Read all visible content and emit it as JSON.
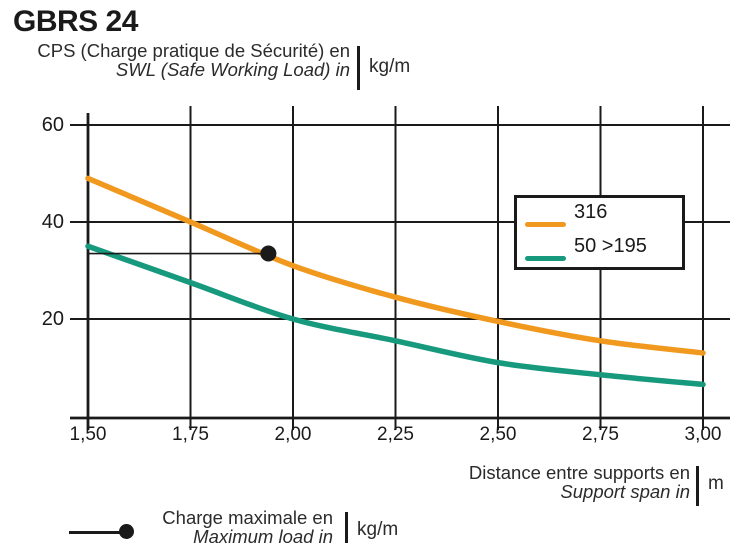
{
  "title": "GBRS 24",
  "y_axis_label": {
    "line1_fr": "CPS (Charge pratique de Sécurité) en",
    "line2_en": "SWL (Safe Working Load) in",
    "unit": "kg/m"
  },
  "x_axis_label": {
    "line1_fr": "Distance entre supports en",
    "line2_en": "Support span in",
    "unit": "m"
  },
  "max_load_legend": {
    "line1_fr": "Charge maximale en",
    "line2_en": "Maximum load in",
    "unit": "kg/m"
  },
  "colors": {
    "series_316": "#F0991E",
    "series_50_195": "#17997D",
    "axis": "#1a1a1a",
    "marker": "#1a1a1a",
    "grid": "#1a1a1a"
  },
  "chart_data": {
    "type": "line",
    "x": [
      1.5,
      1.75,
      2.0,
      2.25,
      2.5,
      2.75,
      3.0
    ],
    "x_tick_labels": [
      "1,50",
      "1,75",
      "2,00",
      "2,25",
      "2,50",
      "2,75",
      "3,00"
    ],
    "y_ticks": [
      20,
      40,
      60
    ],
    "y_tick_labels": [
      "20",
      "40",
      "60"
    ],
    "xlim": [
      1.5,
      3.0
    ],
    "ylim": [
      0,
      64
    ],
    "grid": true,
    "legend_position": "upper right",
    "series": [
      {
        "name": "316",
        "color": "#F0991E",
        "values": [
          49,
          40,
          31,
          24.5,
          19.5,
          15.5,
          13
        ]
      },
      {
        "name": "50 >195",
        "color": "#17997D",
        "values": [
          35,
          27.5,
          20,
          15.5,
          11,
          8.5,
          6.5
        ]
      }
    ],
    "max_load_marker": {
      "x": 1.94,
      "y": 33.5,
      "line_from_x": 1.5
    }
  }
}
